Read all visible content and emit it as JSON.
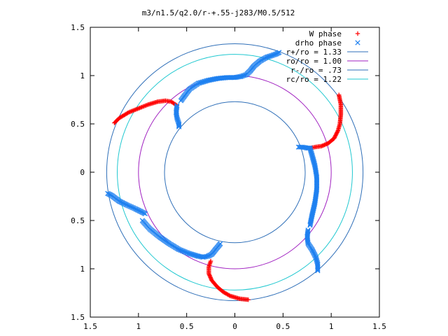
{
  "chart_data": {
    "type": "scatter",
    "title": "m3/n1.5/q2.0/r-+.55-j283/M0.5/512",
    "xlim": [
      -1.5,
      1.5
    ],
    "ylim": [
      -1.5,
      1.5
    ],
    "x_ticks": [
      {
        "value": -1.5,
        "label": "1.5"
      },
      {
        "value": -1,
        "label": "1"
      },
      {
        "value": -0.5,
        "label": "0.5"
      },
      {
        "value": 0,
        "label": "0"
      },
      {
        "value": 0.5,
        "label": "0.5"
      },
      {
        "value": 1,
        "label": "1"
      },
      {
        "value": 1.5,
        "label": "1.5"
      }
    ],
    "y_ticks": [
      {
        "value": 1.5,
        "label": "1.5"
      },
      {
        "value": 1,
        "label": "1"
      },
      {
        "value": 0.5,
        "label": "0.5"
      },
      {
        "value": 0,
        "label": "0"
      },
      {
        "value": -0.5,
        "label": "0.5"
      },
      {
        "value": -1,
        "label": "1"
      },
      {
        "value": -1.5,
        "label": "1.5"
      }
    ],
    "grid": false,
    "legend_position": "top-right",
    "circles": [
      {
        "name": "r+/ro = 1.33",
        "radius": 1.33,
        "color": "#2f6fb8"
      },
      {
        "name": "ro/ro = 1.00",
        "radius": 1.0,
        "color": "#a020c0"
      },
      {
        "name": "r-/ro = .73",
        "radius": 0.73,
        "color": "#2f6fb8"
      },
      {
        "name": "rc/ro = 1.22",
        "radius": 1.22,
        "color": "#20c8d0"
      }
    ],
    "series": [
      {
        "name": "W phase",
        "marker": "plus",
        "color": "#ff0000",
        "arms": [
          [
            [
              -1.25,
              0.51
            ],
            [
              -1.2,
              0.56
            ],
            [
              -1.1,
              0.62
            ],
            [
              -1.0,
              0.66
            ],
            [
              -0.9,
              0.7
            ],
            [
              -0.8,
              0.73
            ],
            [
              -0.72,
              0.74
            ],
            [
              -0.66,
              0.73
            ],
            [
              -0.6,
              0.69
            ]
          ],
          [
            [
              1.08,
              0.8
            ],
            [
              1.1,
              0.7
            ],
            [
              1.1,
              0.6
            ],
            [
              1.09,
              0.5
            ],
            [
              1.07,
              0.43
            ],
            [
              1.03,
              0.35
            ],
            [
              0.97,
              0.3
            ],
            [
              0.9,
              0.27
            ],
            [
              0.83,
              0.26
            ],
            [
              0.78,
              0.25
            ]
          ],
          [
            [
              0.14,
              -1.32
            ],
            [
              0.05,
              -1.31
            ],
            [
              -0.05,
              -1.28
            ],
            [
              -0.12,
              -1.24
            ],
            [
              -0.18,
              -1.19
            ],
            [
              -0.24,
              -1.12
            ],
            [
              -0.27,
              -1.05
            ],
            [
              -0.27,
              -0.98
            ],
            [
              -0.25,
              -0.92
            ]
          ]
        ]
      },
      {
        "name": "drho phase",
        "marker": "cross",
        "color": "#1e80f0",
        "arms": [
          [
            [
              -0.6,
              0.69
            ],
            [
              -0.61,
              0.62
            ],
            [
              -0.6,
              0.56
            ],
            [
              -0.58,
              0.5
            ],
            [
              -0.58,
              0.47
            ]
          ],
          [
            [
              -0.56,
              0.74
            ],
            [
              -0.47,
              0.86
            ],
            [
              -0.38,
              0.92
            ],
            [
              -0.28,
              0.95
            ],
            [
              -0.18,
              0.97
            ],
            [
              -0.08,
              0.98
            ],
            [
              0.0,
              0.98
            ],
            [
              0.06,
              0.99
            ]
          ],
          [
            [
              0.06,
              0.99
            ],
            [
              0.12,
              1.01
            ],
            [
              0.16,
              1.05
            ],
            [
              0.2,
              1.1
            ],
            [
              0.26,
              1.15
            ],
            [
              0.33,
              1.19
            ],
            [
              0.42,
              1.22
            ],
            [
              0.46,
              1.24
            ]
          ],
          [
            [
              0.66,
              0.26
            ],
            [
              0.7,
              0.26
            ],
            [
              0.75,
              0.25
            ],
            [
              0.78,
              0.25
            ]
          ],
          [
            [
              0.78,
              0.25
            ],
            [
              0.8,
              0.18
            ],
            [
              0.83,
              0.07
            ],
            [
              0.85,
              -0.05
            ],
            [
              0.85,
              -0.18
            ],
            [
              0.83,
              -0.32
            ],
            [
              0.8,
              -0.45
            ],
            [
              0.78,
              -0.55
            ]
          ],
          [
            [
              0.76,
              -0.6
            ],
            [
              0.75,
              -0.67
            ],
            [
              0.76,
              -0.74
            ],
            [
              0.8,
              -0.8
            ],
            [
              0.84,
              -0.88
            ],
            [
              0.86,
              -0.95
            ],
            [
              0.86,
              -1.02
            ]
          ],
          [
            [
              -0.15,
              -0.74
            ],
            [
              -0.2,
              -0.8
            ],
            [
              -0.24,
              -0.85
            ],
            [
              -0.28,
              -0.87
            ],
            [
              -0.33,
              -0.88
            ],
            [
              -0.38,
              -0.87
            ]
          ],
          [
            [
              -0.38,
              -0.87
            ],
            [
              -0.48,
              -0.84
            ],
            [
              -0.58,
              -0.8
            ],
            [
              -0.68,
              -0.74
            ],
            [
              -0.78,
              -0.67
            ],
            [
              -0.88,
              -0.59
            ],
            [
              -0.96,
              -0.5
            ]
          ],
          [
            [
              -0.93,
              -0.43
            ],
            [
              -1.03,
              -0.38
            ],
            [
              -1.12,
              -0.34
            ],
            [
              -1.2,
              -0.3
            ],
            [
              -1.28,
              -0.24
            ],
            [
              -1.32,
              -0.22
            ]
          ]
        ]
      }
    ]
  }
}
